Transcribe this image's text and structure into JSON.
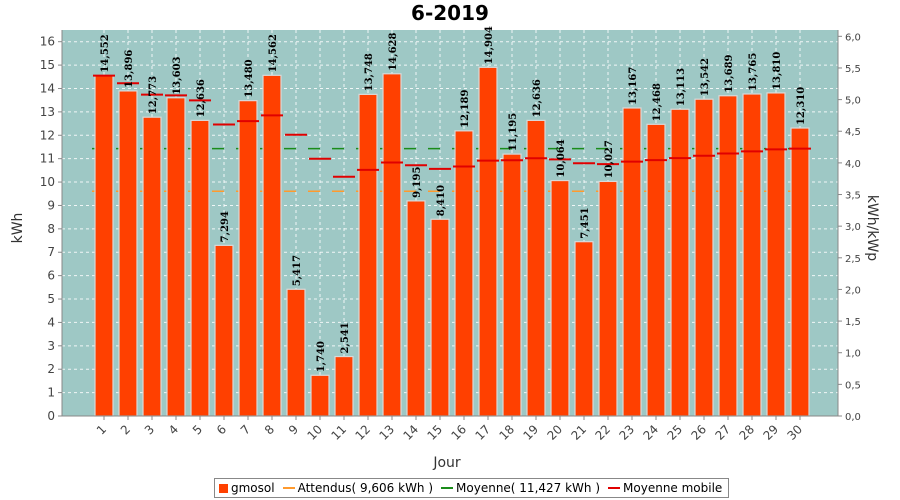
{
  "chart_data": {
    "type": "bar",
    "title": "6-2019",
    "xlabel": "Jour",
    "ylabel": "kWh",
    "y2label": "kWh/kWp",
    "ylim": [
      0,
      16.5
    ],
    "y2lim": [
      0,
      6.1
    ],
    "yticks": [
      "0",
      "1",
      "2",
      "3",
      "4",
      "5",
      "6",
      "7",
      "8",
      "9",
      "10",
      "11",
      "12",
      "13",
      "14",
      "15",
      "16"
    ],
    "y2ticks": [
      "0,0",
      "0,5",
      "1,0",
      "1,5",
      "2,0",
      "2,5",
      "3,0",
      "3,5",
      "4,0",
      "4,5",
      "5,0",
      "5,5",
      "6,0"
    ],
    "categories": [
      "1",
      "2",
      "3",
      "4",
      "5",
      "6",
      "7",
      "8",
      "9",
      "10",
      "11",
      "12",
      "13",
      "14",
      "15",
      "16",
      "17",
      "18",
      "19",
      "20",
      "21",
      "22",
      "23",
      "24",
      "25",
      "26",
      "27",
      "28",
      "29",
      "30"
    ],
    "series": [
      {
        "name": "gmosol",
        "type": "bar",
        "values": [
          14.552,
          13.896,
          12.773,
          13.603,
          12.636,
          7.294,
          13.48,
          14.562,
          5.417,
          1.74,
          2.541,
          13.748,
          14.628,
          9.195,
          8.41,
          12.189,
          14.904,
          11.195,
          12.636,
          10.064,
          7.451,
          10.027,
          13.167,
          12.468,
          13.113,
          13.542,
          13.689,
          13.765,
          13.81,
          12.31
        ],
        "labels": [
          "14,552",
          "13,896",
          "12,773",
          "13,603",
          "12,636",
          "7,294",
          "13,480",
          "14,562",
          "5,417",
          "1,740",
          "2,541",
          "13,748",
          "14,628",
          "9,195",
          "8,410",
          "12,189",
          "14,904",
          "11,195",
          "12,636",
          "10,064",
          "7,451",
          "10,027",
          "13,167",
          "12,468",
          "13,113",
          "13,542",
          "13,689",
          "13,765",
          "13,810",
          "12,310"
        ]
      },
      {
        "name": "Attendus( 9,606 kWh )",
        "type": "hline",
        "value": 9.606
      },
      {
        "name": "Moyenne( 11,427 kWh )",
        "type": "hline",
        "value": 11.427
      },
      {
        "name": "Moyenne mobile",
        "type": "step",
        "values": [
          14.552,
          14.224,
          13.74,
          13.706,
          13.492,
          12.459,
          12.605,
          12.85,
          12.024,
          10.995,
          10.226,
          10.519,
          10.835,
          10.718,
          10.564,
          10.665,
          10.914,
          10.93,
          11.019,
          10.971,
          10.804,
          10.768,
          10.871,
          10.938,
          11.025,
          11.125,
          11.219,
          11.31,
          11.396,
          11.427
        ]
      }
    ],
    "colors": {
      "plot_bg": "#9ec8c5",
      "grid": "#ffffff",
      "bar": "#ff4000",
      "attendus": "#ff9a2e",
      "moyenne": "#1a8c1a",
      "moyenne_mobile": "#e00000"
    },
    "grid": true,
    "legend_position": "bottom"
  },
  "legend": {
    "items": [
      {
        "label": "gmosol",
        "kind": "box",
        "color": "#ff4000"
      },
      {
        "label": "Attendus( 9,606 kWh )",
        "kind": "line",
        "color": "#ff9a2e"
      },
      {
        "label": "Moyenne( 11,427 kWh )",
        "kind": "line",
        "color": "#1a8c1a"
      },
      {
        "label": "Moyenne mobile",
        "kind": "line",
        "color": "#e00000"
      }
    ]
  }
}
